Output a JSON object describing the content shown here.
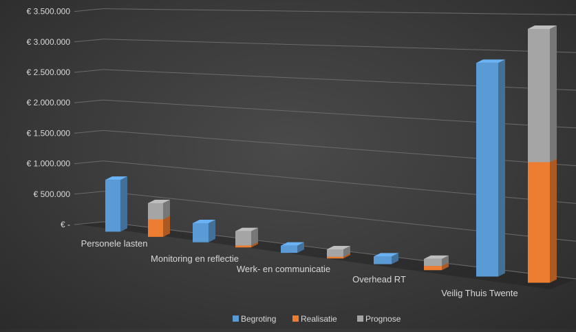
{
  "chart_data": {
    "type": "bar",
    "title": "",
    "xlabel": "",
    "ylabel": "",
    "categories": [
      "Personele lasten",
      "Monitoring en reflectie",
      "Werk- en communicatie",
      "Overhead RT",
      "Veilig Thuis Twente"
    ],
    "y_tick_labels": [
      "€ -",
      "€ 500.000",
      "€ 1.000.000",
      "€ 1.500.000",
      "€ 2.000.000",
      "€ 2.500.000",
      "€ 3.000.000",
      "€ 3.500.000"
    ],
    "ylim": [
      0,
      3500000
    ],
    "grid": true,
    "legend_position": "bottom",
    "series": [
      {
        "name": "Begroting",
        "values": [
          850000,
          300000,
          110000,
          110000,
          2950000
        ],
        "color": "#5b9bd5"
      },
      {
        "name": "Realisatie",
        "values": [
          280000,
          30000,
          25000,
          60000,
          1630000
        ],
        "color": "#ed7d31"
      },
      {
        "name": "Prognose",
        "values": [
          260000,
          220000,
          110000,
          100000,
          1800000
        ],
        "color": "#a5a5a5"
      }
    ],
    "stacked_groups": [
      [
        "Begroting"
      ],
      [
        "Realisatie",
        "Prognose"
      ]
    ]
  }
}
